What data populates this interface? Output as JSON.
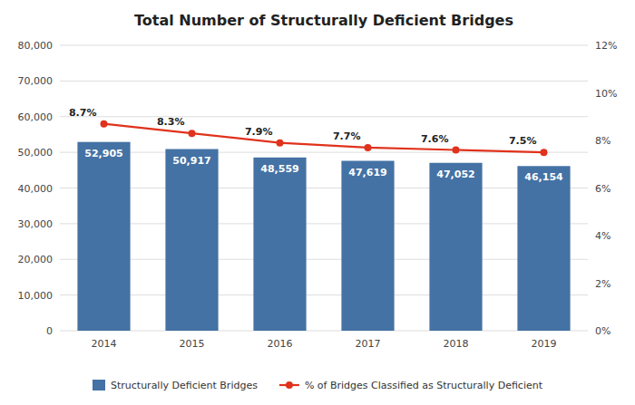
{
  "chart_data": {
    "type": "bar",
    "title": "Total Number of Structurally Deficient Bridges",
    "categories": [
      "2014",
      "2015",
      "2016",
      "2017",
      "2018",
      "2019"
    ],
    "series": [
      {
        "name": "Structurally Deficient Bridges",
        "type": "bar",
        "color": "#4472A4",
        "values": [
          52905,
          50917,
          48559,
          47619,
          47052,
          46154
        ],
        "value_labels": [
          "52,905",
          "50,917",
          "48,559",
          "47,619",
          "47,052",
          "46,154"
        ]
      },
      {
        "name": "% of Bridges Classified as Structurally Deficient",
        "type": "line",
        "axis": "y2",
        "color": "#E0321C",
        "marker": "circle",
        "values": [
          8.7,
          8.3,
          7.9,
          7.7,
          7.6,
          7.5
        ],
        "value_labels": [
          "8.7%",
          "8.3%",
          "7.9%",
          "7.7%",
          "7.6%",
          "7.5%"
        ]
      }
    ],
    "ylim": [
      0,
      80000
    ],
    "yticks": [
      0,
      {
        "value": 10000,
        "label": "10,000"
      },
      {
        "value": 20000,
        "label": "20,000"
      },
      {
        "value": 30000,
        "label": "30,000"
      },
      {
        "value": 40000,
        "label": "40,000"
      },
      {
        "value": 50000,
        "label": "50,000"
      },
      {
        "value": 60000,
        "label": "60,000"
      },
      {
        "value": 70000,
        "label": "70,000"
      },
      {
        "value": 80000,
        "label": "80,000"
      }
    ],
    "y2lim": [
      0,
      12
    ],
    "y2ticks": [
      {
        "value": 0,
        "label": "0%"
      },
      {
        "value": 2,
        "label": "2%"
      },
      {
        "value": 4,
        "label": "4%"
      },
      {
        "value": 6,
        "label": "6%"
      },
      {
        "value": 8,
        "label": "8%"
      },
      {
        "value": 10,
        "label": "10%"
      },
      {
        "value": 12,
        "label": "12%"
      }
    ],
    "grid": true,
    "data_labels": true,
    "legend": "bottom"
  }
}
